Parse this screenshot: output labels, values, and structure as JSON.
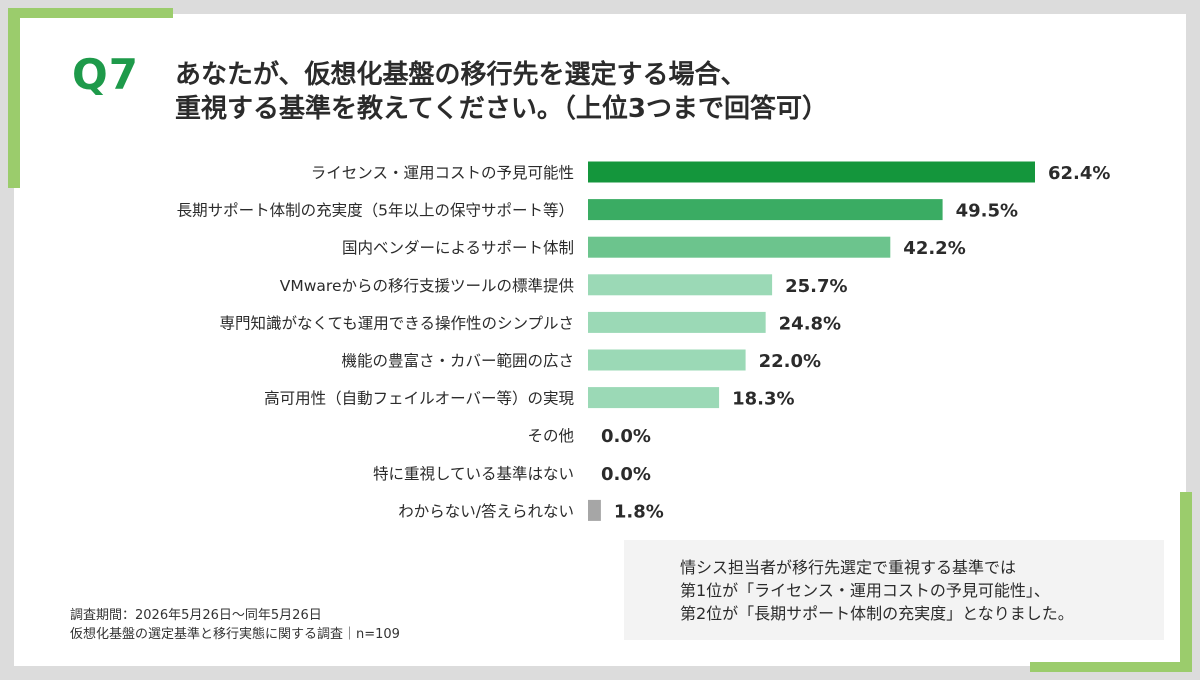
{
  "question": {
    "label": "Q7",
    "title_line1": "あなたが、仮想化基盤の移行先を選定する場合、",
    "title_line2": "重視する基準を教えてください。（上位3つまで回答可）"
  },
  "chart_data": {
    "type": "bar",
    "orientation": "horizontal",
    "categories": [
      "ライセンス・運用コストの予見可能性",
      "長期サポート体制の充実度（5年以上の保守サポート等）",
      "国内ベンダーによるサポート体制",
      "VMwareからの移行支援ツールの標準提供",
      "専門知識がなくても運用できる操作性のシンプルさ",
      "機能の豊富さ・カバー範囲の広さ",
      "高可用性（自動フェイルオーバー等）の実現",
      "その他",
      "特に重視している基準はない",
      "わからない/答えられない"
    ],
    "values": [
      62.4,
      49.5,
      42.2,
      25.7,
      24.8,
      22.0,
      18.3,
      0.0,
      0.0,
      1.8
    ],
    "value_labels": [
      "62.4%",
      "49.5%",
      "42.2%",
      "25.7%",
      "24.8%",
      "22.0%",
      "18.3%",
      "0.0%",
      "0.0%",
      "1.8%"
    ],
    "bar_colors": [
      "#14963c",
      "#3aac63",
      "#6cc48d",
      "#9bd9b6",
      "#9bd9b6",
      "#9bd9b6",
      "#9bd9b6",
      "#9bd9b6",
      "#9bd9b6",
      "#a6a6a6"
    ],
    "xlim": [
      0,
      100
    ],
    "grid": false,
    "legend": "none"
  },
  "note": {
    "line1": "情シス担当者が移行先選定で重視する基準では",
    "line2": "第1位が「ライセンス・運用コストの予見可能性」、",
    "line3": "第2位が「長期サポート体制の充実度」となりました。"
  },
  "source": {
    "line1": "調査期間：2026年5月26日～同年5月26日",
    "line2": "仮想化基盤の選定基準と移行実態に関する調査｜n=109"
  },
  "accent_color": "#9bcc6c",
  "q_color": "#1e9a4a"
}
